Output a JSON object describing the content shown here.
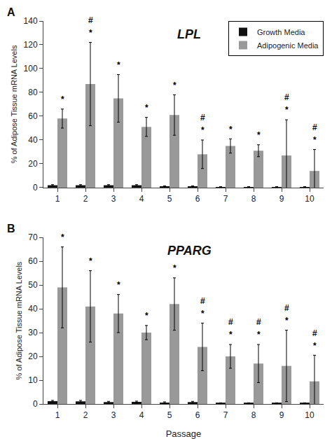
{
  "chart_data": [
    {
      "type": "bar",
      "title": "LPL",
      "panel_label": "A",
      "categories": [
        "1",
        "2",
        "3",
        "4",
        "5",
        "6",
        "7",
        "8",
        "9",
        "10"
      ],
      "series": [
        {
          "name": "Growth Media",
          "color": "#111111",
          "values": [
            2,
            2,
            2,
            2,
            1,
            1,
            0.5,
            0.5,
            0.5,
            0.5
          ],
          "errors": [
            0.5,
            0.5,
            0.5,
            0.5,
            0.5,
            0.5,
            0.3,
            0.3,
            0.3,
            0.3
          ]
        },
        {
          "name": "Adipogenic Media",
          "color": "#999999",
          "values": [
            58,
            87,
            75,
            51,
            61,
            28,
            35,
            31,
            27,
            14
          ],
          "errors": [
            8,
            35,
            20,
            8,
            17,
            12,
            6,
            5,
            30,
            18
          ]
        }
      ],
      "ylabel": "% of Adipose Tissue mRNA Levels",
      "ylim": [
        0,
        140
      ],
      "yticks": [
        0,
        20,
        40,
        60,
        80,
        100,
        120,
        140
      ],
      "grid": false,
      "legend": "upper right",
      "annotations": [
        {
          "category": "1",
          "series": "Adipogenic Media",
          "text": "*"
        },
        {
          "category": "2",
          "series": "Adipogenic Media",
          "text": "*"
        },
        {
          "category": "2",
          "series": "Adipogenic Media",
          "text": "#"
        },
        {
          "category": "3",
          "series": "Adipogenic Media",
          "text": "*"
        },
        {
          "category": "4",
          "series": "Adipogenic Media",
          "text": "*"
        },
        {
          "category": "5",
          "series": "Adipogenic Media",
          "text": "*"
        },
        {
          "category": "6",
          "series": "Adipogenic Media",
          "text": "*"
        },
        {
          "category": "6",
          "series": "Adipogenic Media",
          "text": "#"
        },
        {
          "category": "7",
          "series": "Adipogenic Media",
          "text": "*"
        },
        {
          "category": "8",
          "series": "Adipogenic Media",
          "text": "*"
        },
        {
          "category": "9",
          "series": "Adipogenic Media",
          "text": "*"
        },
        {
          "category": "9",
          "series": "Adipogenic Media",
          "text": "#"
        },
        {
          "category": "10",
          "series": "Adipogenic Media",
          "text": "*"
        },
        {
          "category": "10",
          "series": "Adipogenic Media",
          "text": "#"
        }
      ]
    },
    {
      "type": "bar",
      "title": "PPARG",
      "panel_label": "B",
      "categories": [
        "1",
        "2",
        "3",
        "4",
        "5",
        "6",
        "7",
        "8",
        "9",
        "10"
      ],
      "series": [
        {
          "name": "Growth Media",
          "color": "#111111",
          "values": [
            1.2,
            1.1,
            0.8,
            0.9,
            0.6,
            0.8,
            0.3,
            0.3,
            0.3,
            0.3
          ],
          "errors": [
            0.3,
            0.4,
            0.3,
            0.3,
            0.3,
            0.3,
            0.2,
            0.2,
            0.2,
            0.2
          ]
        },
        {
          "name": "Adipogenic Media",
          "color": "#999999",
          "values": [
            49,
            41,
            38,
            30,
            42,
            24,
            20,
            17,
            16,
            9.5
          ],
          "errors": [
            17,
            15,
            8,
            3,
            11,
            10,
            5,
            8,
            15,
            11
          ]
        }
      ],
      "xlabel": "Passage",
      "ylabel": "% of Adipose Tissue mRNA Levels",
      "ylim": [
        0,
        70
      ],
      "yticks": [
        0,
        10,
        20,
        30,
        40,
        50,
        60,
        70
      ],
      "grid": false,
      "legend": false,
      "annotations": [
        {
          "category": "1",
          "series": "Adipogenic Media",
          "text": "*"
        },
        {
          "category": "2",
          "series": "Adipogenic Media",
          "text": "*"
        },
        {
          "category": "3",
          "series": "Adipogenic Media",
          "text": "*"
        },
        {
          "category": "4",
          "series": "Adipogenic Media",
          "text": "*"
        },
        {
          "category": "5",
          "series": "Adipogenic Media",
          "text": "*"
        },
        {
          "category": "6",
          "series": "Adipogenic Media",
          "text": "*"
        },
        {
          "category": "6",
          "series": "Adipogenic Media",
          "text": "#"
        },
        {
          "category": "7",
          "series": "Adipogenic Media",
          "text": "*"
        },
        {
          "category": "7",
          "series": "Adipogenic Media",
          "text": "#"
        },
        {
          "category": "8",
          "series": "Adipogenic Media",
          "text": "*"
        },
        {
          "category": "8",
          "series": "Adipogenic Media",
          "text": "#"
        },
        {
          "category": "9",
          "series": "Adipogenic Media",
          "text": "*"
        },
        {
          "category": "9",
          "series": "Adipogenic Media",
          "text": "#"
        },
        {
          "category": "10",
          "series": "Adipogenic Media",
          "text": "*"
        },
        {
          "category": "10",
          "series": "Adipogenic Media",
          "text": "#"
        }
      ]
    }
  ]
}
